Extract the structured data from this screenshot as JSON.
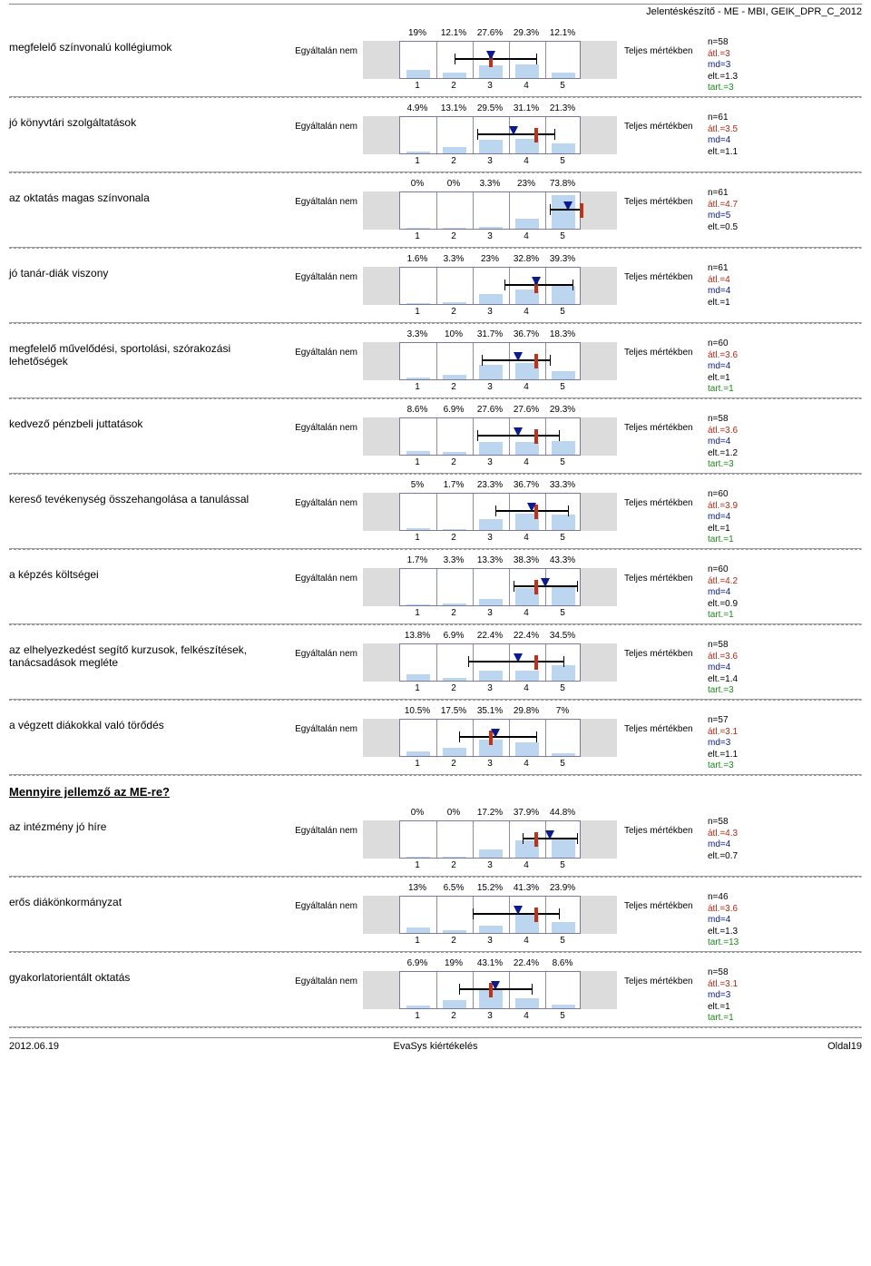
{
  "header": "Jelentéskészítő - ME - MBI, GEIK_DPR_C_2012",
  "scale_left_label": "Egyáltalán nem",
  "scale_right_label": "Teljes mértékben",
  "x_ticks": [
    "1",
    "2",
    "3",
    "4",
    "5"
  ],
  "chart_colors": {
    "bar_fill": "#bcd6ef",
    "grey_pad": "#dcdcdc",
    "gridline": "#8a8ab5",
    "median": "#c23015",
    "mean_triangle": "#0b1a8c",
    "ci_line": "#000000"
  },
  "section2_title": "Mennyire jellemző az ME-re?",
  "stat_colors": {
    "n": "#000000",
    "atl": "#b12a16",
    "md": "#0b1a8c",
    "elt": "#000000",
    "tart": "#1a8a1a"
  },
  "questions": [
    {
      "label": "megfelelő színvonalú kollégiumok",
      "pcts": [
        "19%",
        "12.1%",
        "27.6%",
        "29.3%",
        "12.1%"
      ],
      "vals": [
        19,
        12.1,
        27.6,
        29.3,
        12.1
      ],
      "mean": 3.0,
      "median": 3,
      "ci_lo": 2.2,
      "ci_hi": 4.0,
      "stats": {
        "n": "n=58",
        "atl": "átl.=3",
        "md": "md=3",
        "elt": "elt.=1.3",
        "tart": "tart.=3"
      }
    },
    {
      "label": "jó könyvtári szolgáltatások",
      "pcts": [
        "4.9%",
        "13.1%",
        "29.5%",
        "31.1%",
        "21.3%"
      ],
      "vals": [
        4.9,
        13.1,
        29.5,
        31.1,
        21.3
      ],
      "mean": 3.5,
      "median": 4,
      "ci_lo": 2.7,
      "ci_hi": 4.4,
      "stats": {
        "n": "n=61",
        "atl": "átl.=3.5",
        "md": "md=4",
        "elt": "elt.=1.1"
      }
    },
    {
      "label": "az oktatás magas színvonala",
      "pcts": [
        "0%",
        "0%",
        "3.3%",
        "23%",
        "73.8%"
      ],
      "vals": [
        0,
        0,
        3.3,
        23,
        73.8
      ],
      "mean": 4.7,
      "median": 5,
      "ci_lo": 4.3,
      "ci_hi": 5.0,
      "stats": {
        "n": "n=61",
        "atl": "átl.=4.7",
        "md": "md=5",
        "elt": "elt.=0.5"
      }
    },
    {
      "label": "jó tanár-diák viszony",
      "pcts": [
        "1.6%",
        "3.3%",
        "23%",
        "32.8%",
        "39.3%"
      ],
      "vals": [
        1.6,
        3.3,
        23,
        32.8,
        39.3
      ],
      "mean": 4.0,
      "median": 4,
      "ci_lo": 3.3,
      "ci_hi": 4.8,
      "stats": {
        "n": "n=61",
        "atl": "átl.=4",
        "md": "md=4",
        "elt": "elt.=1"
      }
    },
    {
      "label": "megfelelő művelődési, sportolási, szórakozási lehetőségek",
      "pcts": [
        "3.3%",
        "10%",
        "31.7%",
        "36.7%",
        "18.3%"
      ],
      "vals": [
        3.3,
        10,
        31.7,
        36.7,
        18.3
      ],
      "mean": 3.6,
      "median": 4,
      "ci_lo": 2.8,
      "ci_hi": 4.3,
      "stats": {
        "n": "n=60",
        "atl": "átl.=3.6",
        "md": "md=4",
        "elt": "elt.=1",
        "tart": "tart.=1"
      }
    },
    {
      "label": "kedvező pénzbeli juttatások",
      "pcts": [
        "8.6%",
        "6.9%",
        "27.6%",
        "27.6%",
        "29.3%"
      ],
      "vals": [
        8.6,
        6.9,
        27.6,
        27.6,
        29.3
      ],
      "mean": 3.6,
      "median": 4,
      "ci_lo": 2.7,
      "ci_hi": 4.5,
      "stats": {
        "n": "n=58",
        "atl": "átl.=3.6",
        "md": "md=4",
        "elt": "elt.=1.2",
        "tart": "tart.=3"
      }
    },
    {
      "label": "kereső tevékenység összehangolása a tanulással",
      "pcts": [
        "5%",
        "1.7%",
        "23.3%",
        "36.7%",
        "33.3%"
      ],
      "vals": [
        5,
        1.7,
        23.3,
        36.7,
        33.3
      ],
      "mean": 3.9,
      "median": 4,
      "ci_lo": 3.1,
      "ci_hi": 4.7,
      "stats": {
        "n": "n=60",
        "atl": "átl.=3.9",
        "md": "md=4",
        "elt": "elt.=1",
        "tart": "tart.=1"
      }
    },
    {
      "label": "a képzés költségei",
      "pcts": [
        "1.7%",
        "3.3%",
        "13.3%",
        "38.3%",
        "43.3%"
      ],
      "vals": [
        1.7,
        3.3,
        13.3,
        38.3,
        43.3
      ],
      "mean": 4.2,
      "median": 4,
      "ci_lo": 3.5,
      "ci_hi": 4.9,
      "stats": {
        "n": "n=60",
        "atl": "átl.=4.2",
        "md": "md=4",
        "elt": "elt.=0.9",
        "tart": "tart.=1"
      }
    },
    {
      "label": "az elhelyezkedést segítő kurzusok, felkészítések, tanácsadások megléte",
      "pcts": [
        "13.8%",
        "6.9%",
        "22.4%",
        "22.4%",
        "34.5%"
      ],
      "vals": [
        13.8,
        6.9,
        22.4,
        22.4,
        34.5
      ],
      "mean": 3.6,
      "median": 4,
      "ci_lo": 2.5,
      "ci_hi": 4.6,
      "stats": {
        "n": "n=58",
        "atl": "átl.=3.6",
        "md": "md=4",
        "elt": "elt.=1.4",
        "tart": "tart.=3"
      }
    },
    {
      "label": "a végzett diákokkal való törődés",
      "pcts": [
        "10.5%",
        "17.5%",
        "35.1%",
        "29.8%",
        "7%"
      ],
      "vals": [
        10.5,
        17.5,
        35.1,
        29.8,
        7
      ],
      "mean": 3.1,
      "median": 3,
      "ci_lo": 2.3,
      "ci_hi": 4.0,
      "stats": {
        "n": "n=57",
        "atl": "átl.=3.1",
        "md": "md=3",
        "elt": "elt.=1.1",
        "tart": "tart.=3"
      }
    }
  ],
  "section2_questions": [
    {
      "label": "az intézmény jó híre",
      "pcts": [
        "0%",
        "0%",
        "17.2%",
        "37.9%",
        "44.8%"
      ],
      "vals": [
        0,
        0,
        17.2,
        37.9,
        44.8
      ],
      "mean": 4.3,
      "median": 4,
      "ci_lo": 3.7,
      "ci_hi": 4.9,
      "stats": {
        "n": "n=58",
        "atl": "átl.=4.3",
        "md": "md=4",
        "elt": "elt.=0.7"
      }
    },
    {
      "label": "erős diákönkormányzat",
      "pcts": [
        "13%",
        "6.5%",
        "15.2%",
        "41.3%",
        "23.9%"
      ],
      "vals": [
        13,
        6.5,
        15.2,
        41.3,
        23.9
      ],
      "mean": 3.6,
      "median": 4,
      "ci_lo": 2.6,
      "ci_hi": 4.5,
      "stats": {
        "n": "n=46",
        "atl": "átl.=3.6",
        "md": "md=4",
        "elt": "elt.=1.3",
        "tart": "tart.=13"
      }
    },
    {
      "label": "gyakorlatorientált oktatás",
      "pcts": [
        "6.9%",
        "19%",
        "43.1%",
        "22.4%",
        "8.6%"
      ],
      "vals": [
        6.9,
        19,
        43.1,
        22.4,
        8.6
      ],
      "mean": 3.1,
      "median": 3,
      "ci_lo": 2.3,
      "ci_hi": 3.9,
      "stats": {
        "n": "n=58",
        "atl": "átl.=3.1",
        "md": "md=3",
        "elt": "elt.=1",
        "tart": "tart.=1"
      }
    }
  ],
  "footer": {
    "left": "2012.06.19",
    "mid": "EvaSys kiértékelés",
    "right": "Oldal19"
  }
}
